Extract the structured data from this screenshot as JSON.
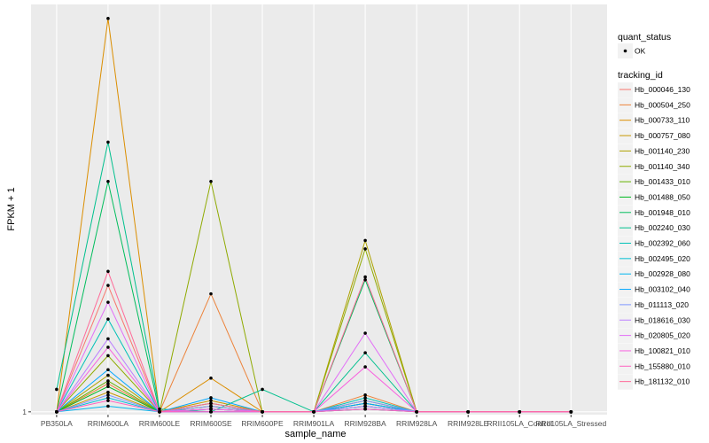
{
  "chart_data": {
    "type": "line",
    "title": "",
    "xlabel": "sample_name",
    "ylabel": "FPKM + 1",
    "y_ticks": [
      1
    ],
    "y_tick_labels": [
      "1"
    ],
    "ylim": [
      0.9,
      15.5
    ],
    "grid": true,
    "legend_placement": "right",
    "categories": [
      "PB350LA",
      "RRIM600LA",
      "RRIM600LE",
      "RRIM600SE",
      "RRIM600PE",
      "RRIM901LA",
      "RRIM928BA",
      "RRIM928LA",
      "RRIM928LE",
      "RRII105LA_Control",
      "RRII105LA_Stressed"
    ],
    "point_legend": {
      "title": "quant_status",
      "entries": [
        {
          "label": "OK",
          "color": "#000000"
        }
      ]
    },
    "line_legend_title": "tracking_id",
    "series": [
      {
        "name": "Hb_000046_130",
        "color": "#F8766D",
        "values": [
          1,
          5.5,
          1,
          1.2,
          1,
          1,
          1.3,
          1,
          1,
          1,
          1
        ]
      },
      {
        "name": "Hb_000504_250",
        "color": "#EC8239",
        "values": [
          1,
          2.0,
          1,
          5.2,
          1,
          1,
          1.6,
          1,
          1,
          1,
          1
        ]
      },
      {
        "name": "Hb_000733_110",
        "color": "#DB8E00",
        "values": [
          1,
          15.0,
          1,
          2.2,
          1,
          1,
          1.1,
          1,
          1,
          1,
          1
        ]
      },
      {
        "name": "Hb_000757_080",
        "color": "#C79800",
        "values": [
          1,
          1.7,
          1,
          1.4,
          1,
          1,
          1.4,
          1,
          1,
          1,
          1
        ]
      },
      {
        "name": "Hb_001140_230",
        "color": "#AEA200",
        "values": [
          1,
          2.3,
          1,
          1.2,
          1,
          1,
          7.1,
          1,
          1,
          1,
          1
        ]
      },
      {
        "name": "Hb_001140_340",
        "color": "#8FAA00",
        "values": [
          1,
          3.0,
          1,
          9.2,
          1,
          1,
          6.8,
          1,
          1,
          1,
          1
        ]
      },
      {
        "name": "Hb_001433_010",
        "color": "#64B200",
        "values": [
          1,
          2.1,
          1,
          1.1,
          1,
          1,
          1.2,
          1,
          1,
          1,
          1
        ]
      },
      {
        "name": "Hb_001488_050",
        "color": "#00B81F",
        "values": [
          1,
          1.9,
          1,
          1.3,
          1,
          1,
          1.3,
          1,
          1,
          1,
          1
        ]
      },
      {
        "name": "Hb_001948_010",
        "color": "#00BD5C",
        "values": [
          1,
          9.2,
          1,
          1.1,
          1,
          1,
          5.7,
          1,
          1,
          1,
          1
        ]
      },
      {
        "name": "Hb_002240_030",
        "color": "#00C08E",
        "values": [
          1.8,
          10.6,
          1.1,
          1.0,
          1.8,
          1,
          3.1,
          1,
          1,
          1,
          1
        ]
      },
      {
        "name": "Hb_002392_060",
        "color": "#00C1B7",
        "values": [
          1,
          4.3,
          1,
          1.1,
          1,
          1,
          1.5,
          1,
          1,
          1,
          1
        ]
      },
      {
        "name": "Hb_002495_020",
        "color": "#00BDD4",
        "values": [
          1,
          1.5,
          1,
          1.0,
          1,
          1,
          1.2,
          1,
          1,
          1,
          1
        ]
      },
      {
        "name": "Hb_002928_080",
        "color": "#00B5EE",
        "values": [
          1,
          1.2,
          1,
          1.0,
          1,
          1,
          1.1,
          1,
          1,
          1,
          1
        ]
      },
      {
        "name": "Hb_003102_040",
        "color": "#00A7FF",
        "values": [
          1,
          2.5,
          1,
          1.5,
          1,
          1,
          1.3,
          1,
          1,
          1,
          1
        ]
      },
      {
        "name": "Hb_011113_020",
        "color": "#7F96FF",
        "values": [
          1,
          1.6,
          1,
          1.2,
          1,
          1,
          1.4,
          1,
          1,
          1,
          1
        ]
      },
      {
        "name": "Hb_018616_030",
        "color": "#BC81FF",
        "values": [
          1,
          3.6,
          1,
          1.1,
          1,
          1,
          1.2,
          1,
          1,
          1,
          1
        ]
      },
      {
        "name": "Hb_020805_020",
        "color": "#E26EF7",
        "values": [
          1,
          4.9,
          1,
          1.0,
          1,
          1,
          3.8,
          1,
          1,
          1,
          1
        ]
      },
      {
        "name": "Hb_100821_010",
        "color": "#F863DF",
        "values": [
          1,
          3.3,
          1,
          1.1,
          1,
          1,
          2.6,
          1,
          1,
          1,
          1
        ]
      },
      {
        "name": "Hb_155880_010",
        "color": "#FF62BF",
        "values": [
          1,
          1.4,
          1,
          1.0,
          1,
          1,
          1.1,
          1,
          1,
          1,
          1
        ]
      },
      {
        "name": "Hb_181132_010",
        "color": "#FF6A98",
        "values": [
          1,
          6.0,
          1,
          1.3,
          1,
          1,
          5.8,
          1,
          1,
          1,
          1
        ]
      }
    ]
  }
}
